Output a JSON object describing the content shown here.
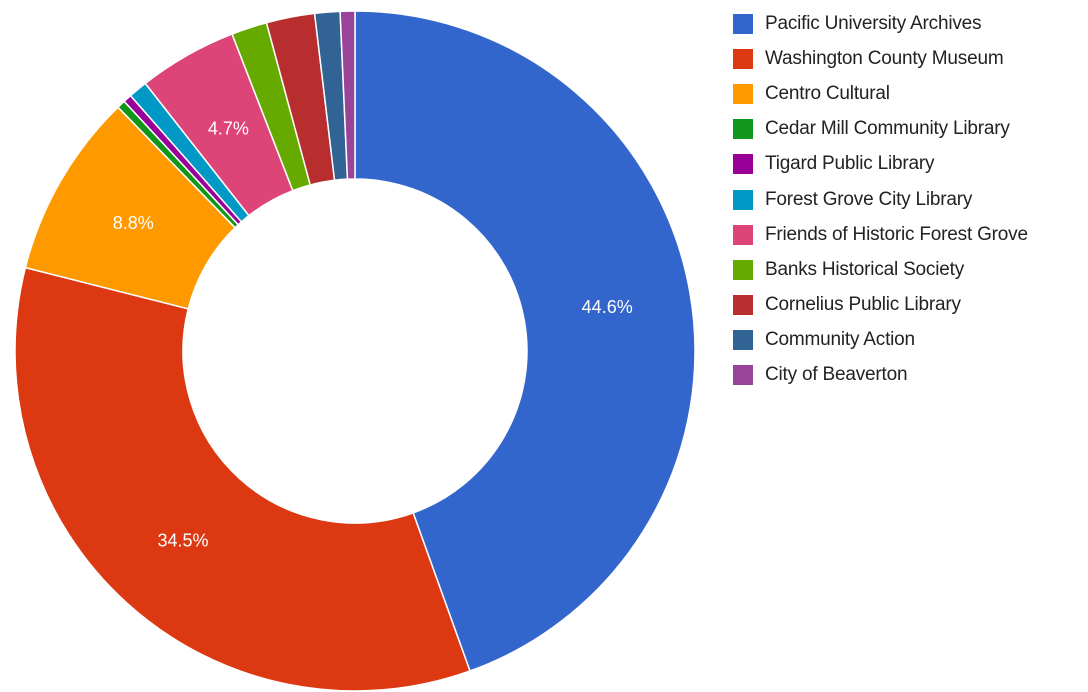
{
  "chart_data": {
    "type": "pie",
    "donut": true,
    "legend_position": "right",
    "slices": [
      {
        "label": "Pacific University Archives",
        "value": 44.6,
        "display": "44.6%",
        "color": "#3366cc"
      },
      {
        "label": "Washington County Museum",
        "value": 34.5,
        "display": "34.5%",
        "color": "#dc3912"
      },
      {
        "label": "Centro Cultural",
        "value": 8.8,
        "display": "8.8%",
        "color": "#ff9900"
      },
      {
        "label": "Cedar Mill Community Library",
        "value": 0.4,
        "display": "",
        "color": "#109618"
      },
      {
        "label": "Tigard Public Library",
        "value": 0.4,
        "display": "",
        "color": "#990099"
      },
      {
        "label": "Forest Grove City Library",
        "value": 0.9,
        "display": "",
        "color": "#0099c6"
      },
      {
        "label": "Friends of Historic Forest Grove",
        "value": 4.7,
        "display": "4.7%",
        "color": "#dd4477"
      },
      {
        "label": "Banks Historical Society",
        "value": 1.7,
        "display": "",
        "color": "#66aa00"
      },
      {
        "label": "Cornelius Public Library",
        "value": 2.3,
        "display": "",
        "color": "#b82e2e"
      },
      {
        "label": "Community Action",
        "value": 1.2,
        "display": "",
        "color": "#316395"
      },
      {
        "label": "City of Beaverton",
        "value": 0.7,
        "display": "",
        "color": "#994499"
      }
    ]
  }
}
